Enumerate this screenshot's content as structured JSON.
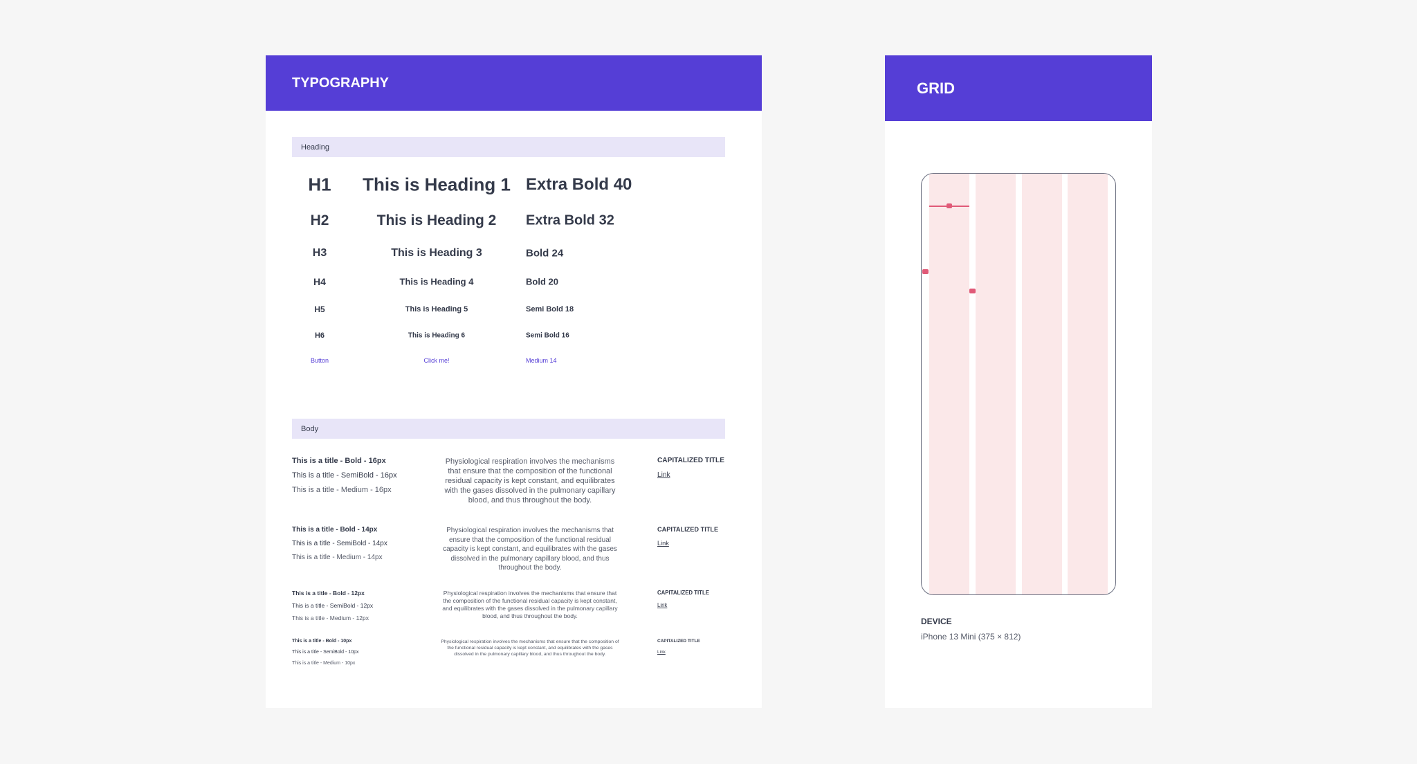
{
  "typography": {
    "title": "TYPOGRAPHY",
    "heading_section": "Heading",
    "headings": [
      {
        "tag": "H1",
        "sample": "This is Heading 1",
        "spec": "Extra Bold 40"
      },
      {
        "tag": "H2",
        "sample": "This is Heading 2",
        "spec": "Extra Bold 32"
      },
      {
        "tag": "H3",
        "sample": "This is Heading 3",
        "spec": "Bold 24"
      },
      {
        "tag": "H4",
        "sample": "This is Heading 4",
        "spec": "Bold 20"
      },
      {
        "tag": "H5",
        "sample": "This is Heading 5",
        "spec": "Semi Bold 18"
      },
      {
        "tag": "H6",
        "sample": "This is Heading 6",
        "spec": "Semi Bold 16"
      },
      {
        "tag": "Button",
        "sample": "Click me!",
        "spec": "Medium 14"
      }
    ],
    "body_section": "Body",
    "body": [
      {
        "bold": "This is a title - Bold - 16px",
        "semibold": "This is a title - SemiBold - 16px",
        "medium": "This is a title - Medium - 16px",
        "paragraph": "Physiological respiration involves the mechanisms that ensure that the composition of the functional residual capacity is kept constant, and equilibrates with the gases dissolved in the pulmonary capillary blood, and thus throughout the body.",
        "caps": "CAPITALIZED TITLE",
        "link": "Link"
      },
      {
        "bold": "This is a title - Bold - 14px",
        "semibold": "This is a title - SemiBold - 14px",
        "medium": "This is a title - Medium - 14px",
        "paragraph": "Physiological respiration involves the mechanisms that ensure that the composition of the functional residual capacity is kept constant, and equilibrates with the gases dissolved in the pulmonary capillary blood, and thus throughout the body.",
        "caps": "CAPITALIZED TITLE",
        "link": "Link"
      },
      {
        "bold": "This is a title - Bold - 12px",
        "semibold": "This is a title - SemiBold - 12px",
        "medium": "This is a title - Medium - 12px",
        "paragraph": "Physiological respiration involves the mechanisms that ensure that the composition of the functional residual capacity is kept constant, and equilibrates with the gases dissolved in the pulmonary capillary blood, and thus throughout the body.",
        "caps": "CAPITALIZED TITLE",
        "link": "Link"
      },
      {
        "bold": "This is a title - Bold - 10px",
        "semibold": "This is a title - SemiBold - 10px",
        "medium": "This is a title - Medium - 10px",
        "paragraph": "Physiological respiration involves the mechanisms that ensure that the composition of the functional residual capacity is kept constant, and equilibrates with the gases dissolved in the pulmonary capillary blood, and thus throughout the body.",
        "caps": "CAPITALIZED TITLE",
        "link": "Link"
      }
    ]
  },
  "grid": {
    "title": "GRID",
    "device_label": "DEVICE",
    "device_value": "iPhone 13 Mini (375 × 812)"
  },
  "colors": {
    "accent": "#553ed6",
    "section_bg": "#e8e5f8",
    "grid_column": "#fbe8e9",
    "marker": "#e05a78"
  }
}
